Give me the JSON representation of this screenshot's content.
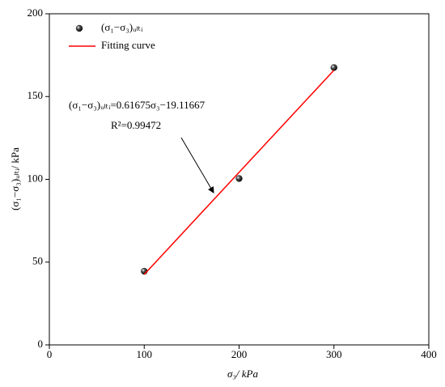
{
  "chart_data": {
    "type": "scatter",
    "x_label": "σ₃/ kPa",
    "y_label": "(σ₁−σ₃)ᵤₗₜᵢ/ kPa",
    "annotations": [
      "(σ₁−σ₃)ᵤₗₜᵢ=0.61675σ₃−19.11667",
      "R²=0.99472"
    ],
    "series": [
      {
        "name": "(σ₁−σ₃)ᵤₗₜᵢ",
        "type": "scatter",
        "color": "#000000",
        "x": [
          100,
          200,
          300
        ],
        "values": [
          44.5,
          100.5,
          167.5
        ]
      },
      {
        "name": "Fitting curve",
        "type": "line",
        "color": "#ff0000",
        "x": [
          100,
          300
        ],
        "values": [
          42.56,
          165.91
        ]
      }
    ],
    "xlim": [
      0,
      400
    ],
    "xticks": [
      0,
      100,
      200,
      300,
      400
    ],
    "ylim": [
      0,
      200
    ],
    "yticks": [
      0,
      50,
      100,
      150,
      200
    ],
    "legend": "top-left"
  }
}
